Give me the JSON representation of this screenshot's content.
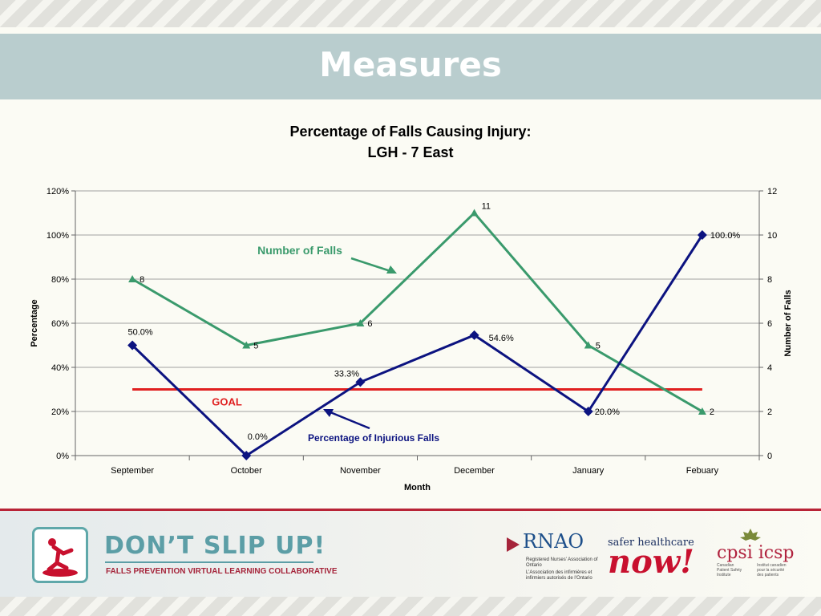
{
  "header": {
    "title": "Measures"
  },
  "chart_data": {
    "type": "line",
    "title": "Percentage of Falls Causing Injury:",
    "subtitle": "LGH - 7 East",
    "xlabel": "Month",
    "ylabel": "Percentage",
    "y2label": "Number of Falls",
    "categories": [
      "September",
      "October",
      "November",
      "December",
      "January",
      "Febuary"
    ],
    "ylim": [
      0,
      120
    ],
    "y_ticks": [
      "0%",
      "20%",
      "40%",
      "60%",
      "80%",
      "100%",
      "120%"
    ],
    "y2lim": [
      0,
      12
    ],
    "y2_ticks": [
      "0",
      "2",
      "4",
      "6",
      "8",
      "10",
      "12"
    ],
    "grid": true,
    "goal": {
      "label": "GOAL",
      "value": 30,
      "color": "#e02020"
    },
    "series": [
      {
        "name": "Percentage of Injurious Falls",
        "axis": "left",
        "color": "#0c1380",
        "marker": "diamond",
        "values": [
          50,
          0,
          33.3,
          54.6,
          20,
          100
        ],
        "labels": [
          "50.0%",
          "0.0%",
          "33.3%",
          "54.6%",
          "20.0%",
          "100.0%"
        ]
      },
      {
        "name": "Number of Falls",
        "axis": "right",
        "color": "#3a9a6c",
        "marker": "triangle",
        "values": [
          8,
          5,
          6,
          11,
          5,
          2
        ],
        "labels": [
          "8",
          "5",
          "6",
          "11",
          "5",
          "2"
        ]
      }
    ]
  },
  "footer": {
    "campaign_title": "DON’T SLIP UP!",
    "campaign_subtitle": "FALLS PREVENTION VIRTUAL LEARNING COLLABORATIVE",
    "rnao_mark": "RNAO",
    "rnao_name_en": "Registered Nurses’ Association of Ontario",
    "rnao_name_fr": "L’Association des infirmières et infirmiers autorisés de l’Ontario",
    "shn_top": "safer healthcare",
    "shn_now": "now!",
    "cpsi_mark": "cpsi icsp",
    "cpsi_en": "Canadian Patient Safety Institute",
    "cpsi_fr": "Institut canadien pour la sécurité des patients"
  }
}
